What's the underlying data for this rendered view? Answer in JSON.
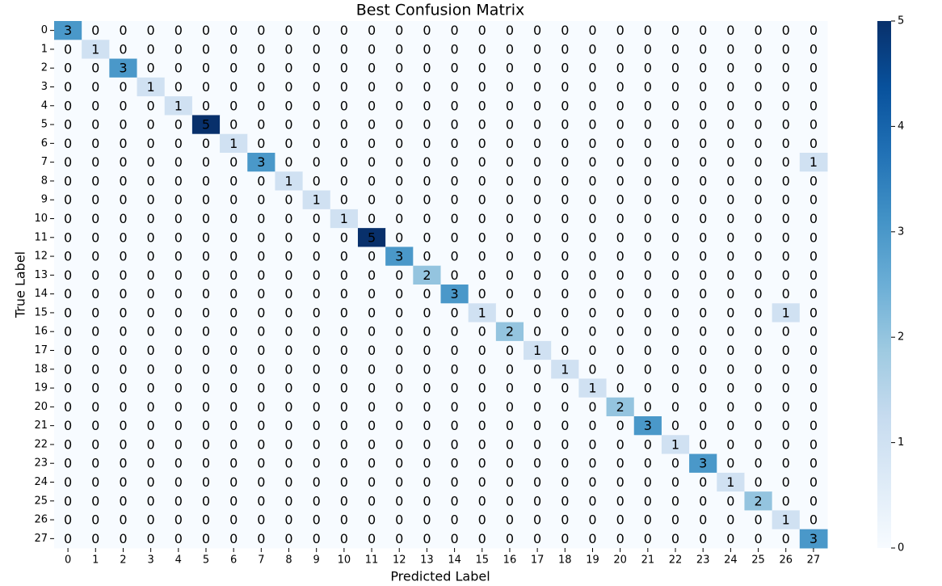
{
  "chart_data": {
    "type": "heatmap",
    "title": "Best Confusion Matrix",
    "x_label": "Predicted Label",
    "y_label": "True Label",
    "x_categories": [
      "0",
      "1",
      "2",
      "3",
      "4",
      "5",
      "6",
      "7",
      "8",
      "9",
      "10",
      "11",
      "12",
      "13",
      "14",
      "15",
      "16",
      "17",
      "18",
      "19",
      "20",
      "21",
      "22",
      "23",
      "24",
      "25",
      "26",
      "27"
    ],
    "y_categories": [
      "0",
      "1",
      "2",
      "3",
      "4",
      "5",
      "6",
      "7",
      "8",
      "9",
      "10",
      "11",
      "12",
      "13",
      "14",
      "15",
      "16",
      "17",
      "18",
      "19",
      "20",
      "21",
      "22",
      "23",
      "24",
      "25",
      "26",
      "27"
    ],
    "values": [
      [
        3,
        0,
        0,
        0,
        0,
        0,
        0,
        0,
        0,
        0,
        0,
        0,
        0,
        0,
        0,
        0,
        0,
        0,
        0,
        0,
        0,
        0,
        0,
        0,
        0,
        0,
        0,
        0
      ],
      [
        0,
        1,
        0,
        0,
        0,
        0,
        0,
        0,
        0,
        0,
        0,
        0,
        0,
        0,
        0,
        0,
        0,
        0,
        0,
        0,
        0,
        0,
        0,
        0,
        0,
        0,
        0,
        0
      ],
      [
        0,
        0,
        3,
        0,
        0,
        0,
        0,
        0,
        0,
        0,
        0,
        0,
        0,
        0,
        0,
        0,
        0,
        0,
        0,
        0,
        0,
        0,
        0,
        0,
        0,
        0,
        0,
        0
      ],
      [
        0,
        0,
        0,
        1,
        0,
        0,
        0,
        0,
        0,
        0,
        0,
        0,
        0,
        0,
        0,
        0,
        0,
        0,
        0,
        0,
        0,
        0,
        0,
        0,
        0,
        0,
        0,
        0
      ],
      [
        0,
        0,
        0,
        0,
        1,
        0,
        0,
        0,
        0,
        0,
        0,
        0,
        0,
        0,
        0,
        0,
        0,
        0,
        0,
        0,
        0,
        0,
        0,
        0,
        0,
        0,
        0,
        0
      ],
      [
        0,
        0,
        0,
        0,
        0,
        5,
        0,
        0,
        0,
        0,
        0,
        0,
        0,
        0,
        0,
        0,
        0,
        0,
        0,
        0,
        0,
        0,
        0,
        0,
        0,
        0,
        0,
        0
      ],
      [
        0,
        0,
        0,
        0,
        0,
        0,
        1,
        0,
        0,
        0,
        0,
        0,
        0,
        0,
        0,
        0,
        0,
        0,
        0,
        0,
        0,
        0,
        0,
        0,
        0,
        0,
        0,
        0
      ],
      [
        0,
        0,
        0,
        0,
        0,
        0,
        0,
        3,
        0,
        0,
        0,
        0,
        0,
        0,
        0,
        0,
        0,
        0,
        0,
        0,
        0,
        0,
        0,
        0,
        0,
        0,
        0,
        1
      ],
      [
        0,
        0,
        0,
        0,
        0,
        0,
        0,
        0,
        1,
        0,
        0,
        0,
        0,
        0,
        0,
        0,
        0,
        0,
        0,
        0,
        0,
        0,
        0,
        0,
        0,
        0,
        0,
        0
      ],
      [
        0,
        0,
        0,
        0,
        0,
        0,
        0,
        0,
        0,
        1,
        0,
        0,
        0,
        0,
        0,
        0,
        0,
        0,
        0,
        0,
        0,
        0,
        0,
        0,
        0,
        0,
        0,
        0
      ],
      [
        0,
        0,
        0,
        0,
        0,
        0,
        0,
        0,
        0,
        0,
        1,
        0,
        0,
        0,
        0,
        0,
        0,
        0,
        0,
        0,
        0,
        0,
        0,
        0,
        0,
        0,
        0,
        0
      ],
      [
        0,
        0,
        0,
        0,
        0,
        0,
        0,
        0,
        0,
        0,
        0,
        5,
        0,
        0,
        0,
        0,
        0,
        0,
        0,
        0,
        0,
        0,
        0,
        0,
        0,
        0,
        0,
        0
      ],
      [
        0,
        0,
        0,
        0,
        0,
        0,
        0,
        0,
        0,
        0,
        0,
        0,
        3,
        0,
        0,
        0,
        0,
        0,
        0,
        0,
        0,
        0,
        0,
        0,
        0,
        0,
        0,
        0
      ],
      [
        0,
        0,
        0,
        0,
        0,
        0,
        0,
        0,
        0,
        0,
        0,
        0,
        0,
        2,
        0,
        0,
        0,
        0,
        0,
        0,
        0,
        0,
        0,
        0,
        0,
        0,
        0,
        0
      ],
      [
        0,
        0,
        0,
        0,
        0,
        0,
        0,
        0,
        0,
        0,
        0,
        0,
        0,
        0,
        3,
        0,
        0,
        0,
        0,
        0,
        0,
        0,
        0,
        0,
        0,
        0,
        0,
        0
      ],
      [
        0,
        0,
        0,
        0,
        0,
        0,
        0,
        0,
        0,
        0,
        0,
        0,
        0,
        0,
        0,
        1,
        0,
        0,
        0,
        0,
        0,
        0,
        0,
        0,
        0,
        0,
        1,
        0
      ],
      [
        0,
        0,
        0,
        0,
        0,
        0,
        0,
        0,
        0,
        0,
        0,
        0,
        0,
        0,
        0,
        0,
        2,
        0,
        0,
        0,
        0,
        0,
        0,
        0,
        0,
        0,
        0,
        0
      ],
      [
        0,
        0,
        0,
        0,
        0,
        0,
        0,
        0,
        0,
        0,
        0,
        0,
        0,
        0,
        0,
        0,
        0,
        1,
        0,
        0,
        0,
        0,
        0,
        0,
        0,
        0,
        0,
        0
      ],
      [
        0,
        0,
        0,
        0,
        0,
        0,
        0,
        0,
        0,
        0,
        0,
        0,
        0,
        0,
        0,
        0,
        0,
        0,
        1,
        0,
        0,
        0,
        0,
        0,
        0,
        0,
        0,
        0
      ],
      [
        0,
        0,
        0,
        0,
        0,
        0,
        0,
        0,
        0,
        0,
        0,
        0,
        0,
        0,
        0,
        0,
        0,
        0,
        0,
        1,
        0,
        0,
        0,
        0,
        0,
        0,
        0,
        0
      ],
      [
        0,
        0,
        0,
        0,
        0,
        0,
        0,
        0,
        0,
        0,
        0,
        0,
        0,
        0,
        0,
        0,
        0,
        0,
        0,
        0,
        2,
        0,
        0,
        0,
        0,
        0,
        0,
        0
      ],
      [
        0,
        0,
        0,
        0,
        0,
        0,
        0,
        0,
        0,
        0,
        0,
        0,
        0,
        0,
        0,
        0,
        0,
        0,
        0,
        0,
        0,
        3,
        0,
        0,
        0,
        0,
        0,
        0
      ],
      [
        0,
        0,
        0,
        0,
        0,
        0,
        0,
        0,
        0,
        0,
        0,
        0,
        0,
        0,
        0,
        0,
        0,
        0,
        0,
        0,
        0,
        0,
        1,
        0,
        0,
        0,
        0,
        0
      ],
      [
        0,
        0,
        0,
        0,
        0,
        0,
        0,
        0,
        0,
        0,
        0,
        0,
        0,
        0,
        0,
        0,
        0,
        0,
        0,
        0,
        0,
        0,
        0,
        3,
        0,
        0,
        0,
        0
      ],
      [
        0,
        0,
        0,
        0,
        0,
        0,
        0,
        0,
        0,
        0,
        0,
        0,
        0,
        0,
        0,
        0,
        0,
        0,
        0,
        0,
        0,
        0,
        0,
        0,
        1,
        0,
        0,
        0
      ],
      [
        0,
        0,
        0,
        0,
        0,
        0,
        0,
        0,
        0,
        0,
        0,
        0,
        0,
        0,
        0,
        0,
        0,
        0,
        0,
        0,
        0,
        0,
        0,
        0,
        0,
        2,
        0,
        0
      ],
      [
        0,
        0,
        0,
        0,
        0,
        0,
        0,
        0,
        0,
        0,
        0,
        0,
        0,
        0,
        0,
        0,
        0,
        0,
        0,
        0,
        0,
        0,
        0,
        0,
        0,
        0,
        1,
        0
      ],
      [
        0,
        0,
        0,
        0,
        0,
        0,
        0,
        0,
        0,
        0,
        0,
        0,
        0,
        0,
        0,
        0,
        0,
        0,
        0,
        0,
        0,
        0,
        0,
        0,
        0,
        0,
        0,
        3
      ]
    ],
    "colorbar_lim": [
      0,
      5
    ],
    "colorbar_ticks": [
      0,
      1,
      2,
      3,
      4,
      5
    ],
    "colormap": [
      "#f7fbff",
      "#deebf7",
      "#c6dbef",
      "#9ecae1",
      "#6baed6",
      "#4292c6",
      "#2171b5",
      "#08519c",
      "#08306b"
    ]
  }
}
